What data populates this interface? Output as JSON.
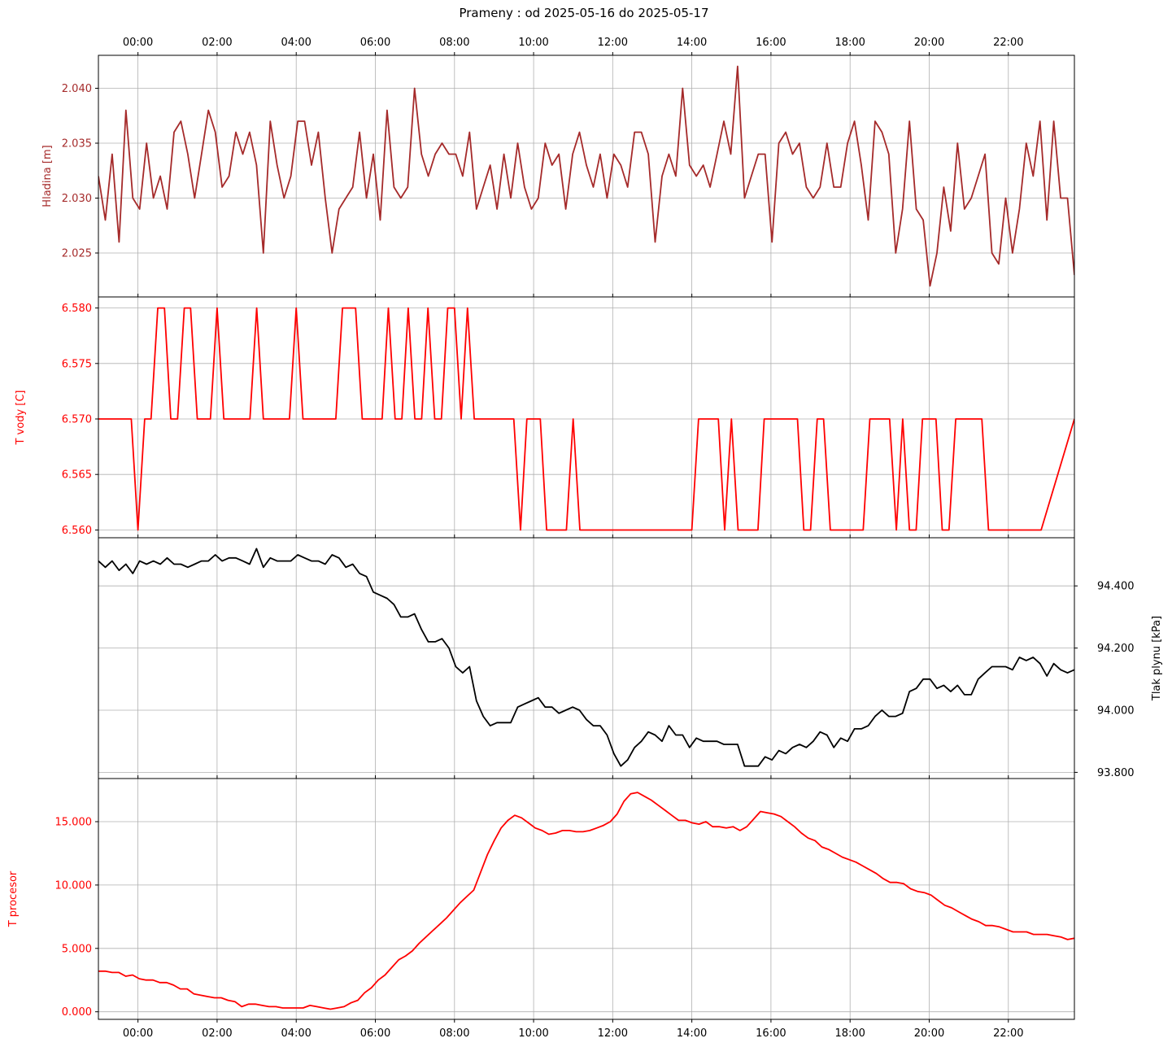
{
  "figure": {
    "title": "Prameny : od 2025-05-16 do 2025-05-17",
    "time_ticks": [
      "00:00",
      "02:00",
      "04:00",
      "06:00",
      "08:00",
      "10:00",
      "12:00",
      "14:00",
      "16:00",
      "18:00",
      "20:00",
      "22:00"
    ]
  },
  "chart_data": [
    {
      "type": "line",
      "ylabel": "Hladina [m]",
      "color": "#a52a2a",
      "label_color": "#a52a2a",
      "ylim": [
        2.021,
        2.043
      ],
      "yticks": [
        "2.025",
        "2.030",
        "2.035",
        "2.040"
      ],
      "y_axis_side": "left",
      "x_unit": "hours relative to 2025-05-16 00:00",
      "xlim": [
        -1.0,
        23.67
      ],
      "grid": true,
      "values": [
        2.032,
        2.028,
        2.034,
        2.026,
        2.038,
        2.03,
        2.029,
        2.035,
        2.03,
        2.032,
        2.029,
        2.036,
        2.037,
        2.034,
        2.03,
        2.034,
        2.038,
        2.036,
        2.031,
        2.032,
        2.036,
        2.034,
        2.036,
        2.033,
        2.025,
        2.037,
        2.033,
        2.03,
        2.032,
        2.037,
        2.037,
        2.033,
        2.036,
        2.03,
        2.025,
        2.029,
        2.03,
        2.031,
        2.036,
        2.03,
        2.034,
        2.028,
        2.038,
        2.031,
        2.03,
        2.031,
        2.04,
        2.034,
        2.032,
        2.034,
        2.035,
        2.034,
        2.034,
        2.032,
        2.036,
        2.029,
        2.031,
        2.033,
        2.029,
        2.034,
        2.03,
        2.035,
        2.031,
        2.029,
        2.03,
        2.035,
        2.033,
        2.034,
        2.029,
        2.034,
        2.036,
        2.033,
        2.031,
        2.034,
        2.03,
        2.034,
        2.033,
        2.031,
        2.036,
        2.036,
        2.034,
        2.026,
        2.032,
        2.034,
        2.032,
        2.04,
        2.033,
        2.032,
        2.033,
        2.031,
        2.034,
        2.037,
        2.034,
        2.042,
        2.03,
        2.032,
        2.034,
        2.034,
        2.026,
        2.035,
        2.036,
        2.034,
        2.035,
        2.031,
        2.03,
        2.031,
        2.035,
        2.031,
        2.031,
        2.035,
        2.037,
        2.033,
        2.028,
        2.037,
        2.036,
        2.034,
        2.025,
        2.029,
        2.037,
        2.029,
        2.028,
        2.022,
        2.025,
        2.031,
        2.027,
        2.035,
        2.029,
        2.03,
        2.032,
        2.034,
        2.025,
        2.024,
        2.03,
        2.025,
        2.029,
        2.035,
        2.032,
        2.037,
        2.028,
        2.037,
        2.03,
        2.03,
        2.023
      ]
    },
    {
      "type": "line",
      "ylabel": "T vody [C]",
      "color": "#ff0000",
      "label_color": "#ff0000",
      "ylim": [
        6.5593,
        6.581
      ],
      "yticks": [
        "6.560",
        "6.565",
        "6.570",
        "6.575",
        "6.580"
      ],
      "y_axis_side": "left",
      "x_unit": "hours relative to 2025-05-16 00:00",
      "xlim": [
        -1.0,
        23.67
      ],
      "grid": true,
      "points": [
        [
          -1.0,
          6.57
        ],
        [
          -0.17,
          6.57
        ],
        [
          0.0,
          6.56
        ],
        [
          0.17,
          6.57
        ],
        [
          0.33,
          6.57
        ],
        [
          0.5,
          6.58
        ],
        [
          0.67,
          6.58
        ],
        [
          0.83,
          6.57
        ],
        [
          1.0,
          6.57
        ],
        [
          1.17,
          6.58
        ],
        [
          1.33,
          6.58
        ],
        [
          1.5,
          6.57
        ],
        [
          1.83,
          6.57
        ],
        [
          2.0,
          6.58
        ],
        [
          2.17,
          6.57
        ],
        [
          2.83,
          6.57
        ],
        [
          3.0,
          6.58
        ],
        [
          3.17,
          6.57
        ],
        [
          3.83,
          6.57
        ],
        [
          4.0,
          6.58
        ],
        [
          4.17,
          6.57
        ],
        [
          5.0,
          6.57
        ],
        [
          5.17,
          6.58
        ],
        [
          5.5,
          6.58
        ],
        [
          5.67,
          6.57
        ],
        [
          6.17,
          6.57
        ],
        [
          6.33,
          6.58
        ],
        [
          6.5,
          6.57
        ],
        [
          6.67,
          6.57
        ],
        [
          6.83,
          6.58
        ],
        [
          7.0,
          6.57
        ],
        [
          7.17,
          6.57
        ],
        [
          7.33,
          6.58
        ],
        [
          7.5,
          6.57
        ],
        [
          7.67,
          6.57
        ],
        [
          7.83,
          6.58
        ],
        [
          8.0,
          6.58
        ],
        [
          8.17,
          6.57
        ],
        [
          8.33,
          6.58
        ],
        [
          8.5,
          6.57
        ],
        [
          9.5,
          6.57
        ],
        [
          9.67,
          6.56
        ],
        [
          9.83,
          6.57
        ],
        [
          10.17,
          6.57
        ],
        [
          10.33,
          6.56
        ],
        [
          10.83,
          6.56
        ],
        [
          11.0,
          6.57
        ],
        [
          11.17,
          6.56
        ],
        [
          14.0,
          6.56
        ],
        [
          14.17,
          6.57
        ],
        [
          14.67,
          6.57
        ],
        [
          14.83,
          6.56
        ],
        [
          15.0,
          6.57
        ],
        [
          15.17,
          6.56
        ],
        [
          15.67,
          6.56
        ],
        [
          15.83,
          6.57
        ],
        [
          16.67,
          6.57
        ],
        [
          16.83,
          6.56
        ],
        [
          17.0,
          6.56
        ],
        [
          17.17,
          6.57
        ],
        [
          17.33,
          6.57
        ],
        [
          17.5,
          6.56
        ],
        [
          18.33,
          6.56
        ],
        [
          18.5,
          6.57
        ],
        [
          19.0,
          6.57
        ],
        [
          19.17,
          6.56
        ],
        [
          19.33,
          6.57
        ],
        [
          19.5,
          6.56
        ],
        [
          19.67,
          6.56
        ],
        [
          19.83,
          6.57
        ],
        [
          20.17,
          6.57
        ],
        [
          20.33,
          6.56
        ],
        [
          20.5,
          6.56
        ],
        [
          20.67,
          6.57
        ],
        [
          21.33,
          6.57
        ],
        [
          21.5,
          6.56
        ],
        [
          22.67,
          6.56
        ],
        [
          22.83,
          6.56
        ],
        [
          23.67,
          6.57
        ]
      ]
    },
    {
      "type": "line",
      "ylabel": "Tlak plynu [kPa]",
      "color": "#000000",
      "label_color": "#000000",
      "ylim": [
        93.78,
        94.555
      ],
      "yticks": [
        "93.800",
        "94.000",
        "94.200",
        "94.400"
      ],
      "y_axis_side": "right",
      "x_unit": "hours relative to 2025-05-16 00:00",
      "xlim": [
        -1.0,
        23.67
      ],
      "grid": true,
      "values": [
        94.48,
        94.46,
        94.48,
        94.45,
        94.47,
        94.44,
        94.48,
        94.47,
        94.48,
        94.47,
        94.49,
        94.47,
        94.47,
        94.46,
        94.47,
        94.48,
        94.48,
        94.5,
        94.48,
        94.49,
        94.49,
        94.48,
        94.47,
        94.52,
        94.46,
        94.49,
        94.48,
        94.48,
        94.48,
        94.5,
        94.49,
        94.48,
        94.48,
        94.47,
        94.5,
        94.49,
        94.46,
        94.47,
        94.44,
        94.43,
        94.38,
        94.37,
        94.36,
        94.34,
        94.3,
        94.3,
        94.31,
        94.26,
        94.22,
        94.22,
        94.23,
        94.2,
        94.14,
        94.12,
        94.14,
        94.03,
        93.98,
        93.95,
        93.96,
        93.96,
        93.96,
        94.01,
        94.02,
        94.03,
        94.04,
        94.01,
        94.01,
        93.99,
        94.0,
        94.01,
        94.0,
        93.97,
        93.95,
        93.95,
        93.92,
        93.86,
        93.82,
        93.84,
        93.88,
        93.9,
        93.93,
        93.92,
        93.9,
        93.95,
        93.92,
        93.92,
        93.88,
        93.91,
        93.9,
        93.9,
        93.9,
        93.89,
        93.89,
        93.89,
        93.82,
        93.82,
        93.82,
        93.85,
        93.84,
        93.87,
        93.86,
        93.88,
        93.89,
        93.88,
        93.9,
        93.93,
        93.92,
        93.88,
        93.91,
        93.9,
        93.94,
        93.94,
        93.95,
        93.98,
        94.0,
        93.98,
        93.98,
        93.99,
        94.06,
        94.07,
        94.1,
        94.1,
        94.07,
        94.08,
        94.06,
        94.08,
        94.05,
        94.05,
        94.1,
        94.12,
        94.14,
        94.14,
        94.14,
        94.13,
        94.17,
        94.16,
        94.17,
        94.15,
        94.11,
        94.15,
        94.13,
        94.12,
        94.13
      ]
    },
    {
      "type": "line",
      "ylabel": "T procesor",
      "color": "#ff0000",
      "label_color": "#ff0000",
      "ylim": [
        -0.6,
        18.4
      ],
      "yticks": [
        "0.000",
        "5.000",
        "10.000",
        "15.000"
      ],
      "y_axis_side": "left",
      "x_unit": "hours relative to 2025-05-16 00:00",
      "xlim": [
        -1.0,
        23.67
      ],
      "grid": true,
      "values": [
        3.2,
        3.2,
        3.1,
        3.1,
        2.8,
        2.9,
        2.6,
        2.5,
        2.5,
        2.3,
        2.3,
        2.1,
        1.8,
        1.8,
        1.4,
        1.3,
        1.2,
        1.1,
        1.1,
        0.9,
        0.8,
        0.4,
        0.6,
        0.6,
        0.5,
        0.4,
        0.4,
        0.3,
        0.3,
        0.3,
        0.3,
        0.5,
        0.4,
        0.3,
        0.2,
        0.3,
        0.4,
        0.7,
        0.9,
        1.5,
        1.9,
        2.5,
        2.9,
        3.5,
        4.1,
        4.4,
        4.8,
        5.4,
        5.9,
        6.4,
        6.9,
        7.4,
        8.0,
        8.6,
        9.1,
        9.6,
        11.0,
        12.4,
        13.5,
        14.5,
        15.1,
        15.5,
        15.3,
        14.9,
        14.5,
        14.3,
        14.0,
        14.1,
        14.3,
        14.3,
        14.2,
        14.2,
        14.3,
        14.5,
        14.7,
        15.0,
        15.6,
        16.6,
        17.2,
        17.3,
        17.0,
        16.7,
        16.3,
        15.9,
        15.5,
        15.1,
        15.1,
        14.9,
        14.8,
        15.0,
        14.6,
        14.6,
        14.5,
        14.6,
        14.3,
        14.6,
        15.2,
        15.8,
        15.7,
        15.6,
        15.4,
        15.0,
        14.6,
        14.1,
        13.7,
        13.5,
        13.0,
        12.8,
        12.5,
        12.2,
        12.0,
        11.8,
        11.5,
        11.2,
        10.9,
        10.5,
        10.2,
        10.2,
        10.1,
        9.7,
        9.5,
        9.4,
        9.2,
        8.8,
        8.4,
        8.2,
        7.9,
        7.6,
        7.3,
        7.1,
        6.8,
        6.8,
        6.7,
        6.5,
        6.3,
        6.3,
        6.3,
        6.1,
        6.1,
        6.1,
        6.0,
        5.9,
        5.7,
        5.8
      ]
    }
  ]
}
